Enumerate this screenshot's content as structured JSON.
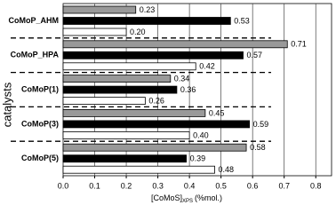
{
  "chart_data": {
    "type": "bar",
    "orientation": "horizontal",
    "x_label": "[CoMoS]",
    "x_label_sub": "XPS",
    "x_label_unit": "(%mol.)",
    "y_label": "catalysts",
    "categories": [
      "CoMoP_AHM",
      "CoMoP_HPA",
      "CoMoP(1)",
      "CoMoP(3)",
      "CoMoP(5)"
    ],
    "series": [
      {
        "color": "#999999",
        "values": [
          0.23,
          0.71,
          0.34,
          0.45,
          0.58
        ],
        "value_labels": [
          "0.23",
          "0.71",
          "0.34",
          "0.45",
          "0.58"
        ]
      },
      {
        "color": "#000000",
        "values": [
          0.53,
          0.57,
          0.36,
          0.59,
          0.39
        ],
        "value_labels": [
          "0.53",
          "0.57",
          "0.36",
          "0.59",
          "0.39"
        ]
      },
      {
        "color": "#ffffff",
        "values": [
          0.2,
          0.42,
          0.26,
          0.4,
          0.48
        ],
        "value_labels": [
          "0.20",
          "0.42",
          "0.26",
          "0.40",
          "0.48"
        ]
      }
    ],
    "xlim": [
      0,
      0.85
    ],
    "xticks": [
      {
        "value": 0,
        "label": "0.0"
      },
      {
        "value": 0.1,
        "label": "0.1"
      },
      {
        "value": 0.2,
        "label": "0.2"
      },
      {
        "value": 0.3,
        "label": "0.3"
      },
      {
        "value": 0.4,
        "label": "0.4"
      },
      {
        "value": 0.5,
        "label": "0.5"
      },
      {
        "value": 0.6,
        "label": "0.6"
      },
      {
        "value": 0.7,
        "label": "0.7"
      },
      {
        "value": 0.8,
        "label": "0.8"
      }
    ],
    "grid": true
  }
}
